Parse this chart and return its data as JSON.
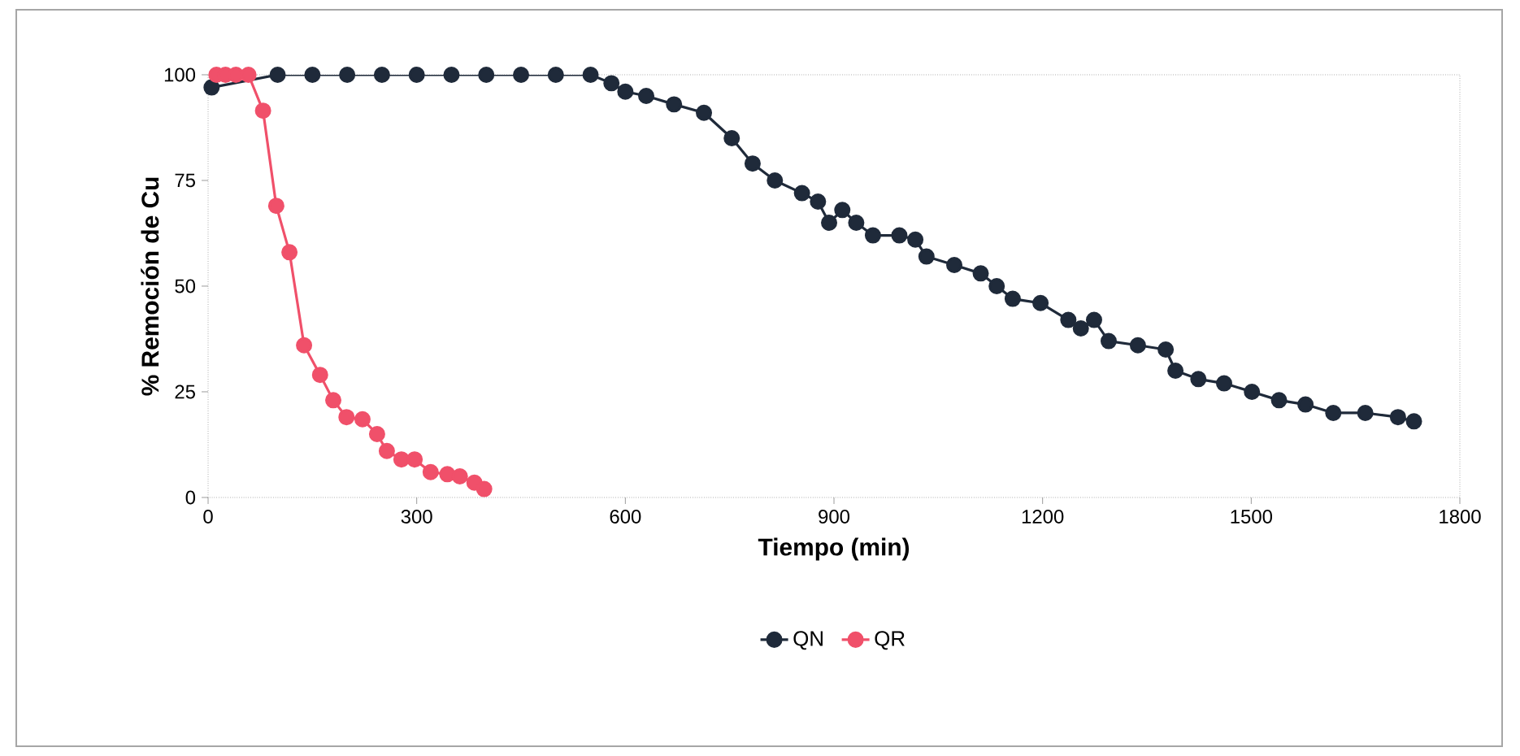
{
  "chart_data": {
    "type": "line",
    "xlabel": "Tiempo (min)",
    "ylabel": "% Remoción de Cu",
    "xlim": [
      0,
      1800
    ],
    "ylim": [
      0,
      100
    ],
    "xticks": [
      0,
      300,
      600,
      900,
      1200,
      1500,
      1800
    ],
    "yticks": [
      0,
      25,
      50,
      75,
      100
    ],
    "marker": "circle",
    "line_style": "solid",
    "legend": "bottom",
    "series": [
      {
        "name": "QN",
        "color": "#1f2a3a",
        "x": [
          5,
          20,
          50,
          100,
          150,
          200,
          250,
          300,
          350,
          400,
          450,
          500,
          550,
          580,
          600,
          630,
          670,
          713,
          753,
          783,
          815,
          854,
          877,
          893,
          912,
          932,
          956,
          994,
          1017,
          1033,
          1073,
          1111,
          1134,
          1157,
          1197,
          1237,
          1255,
          1274,
          1295,
          1337,
          1377,
          1391,
          1424,
          1461,
          1501,
          1540,
          1578,
          1618,
          1664,
          1711,
          1734
        ],
        "values": [
          97,
          null,
          null,
          100,
          100,
          100,
          100,
          100,
          100,
          100,
          100,
          100,
          100,
          98,
          96,
          95,
          93,
          91,
          85,
          79,
          75,
          72,
          70,
          65,
          68,
          65,
          62,
          62,
          61,
          57,
          55,
          53,
          50,
          47,
          46,
          42,
          40,
          42,
          37,
          36,
          35,
          30,
          28,
          27,
          25,
          23,
          22,
          20,
          20,
          19,
          18
        ]
      },
      {
        "name": "QR",
        "color": "#f0506a",
        "x": [
          12,
          25,
          40,
          58,
          79,
          98,
          117,
          138,
          161,
          180,
          199,
          222,
          243,
          257,
          278,
          297,
          320,
          344,
          362,
          383,
          397
        ],
        "values": [
          100,
          100,
          100,
          100,
          91.5,
          69,
          58,
          36,
          29,
          23,
          19,
          18.5,
          15,
          11,
          9,
          9,
          6,
          5.5,
          5,
          3.5,
          2
        ]
      }
    ]
  }
}
